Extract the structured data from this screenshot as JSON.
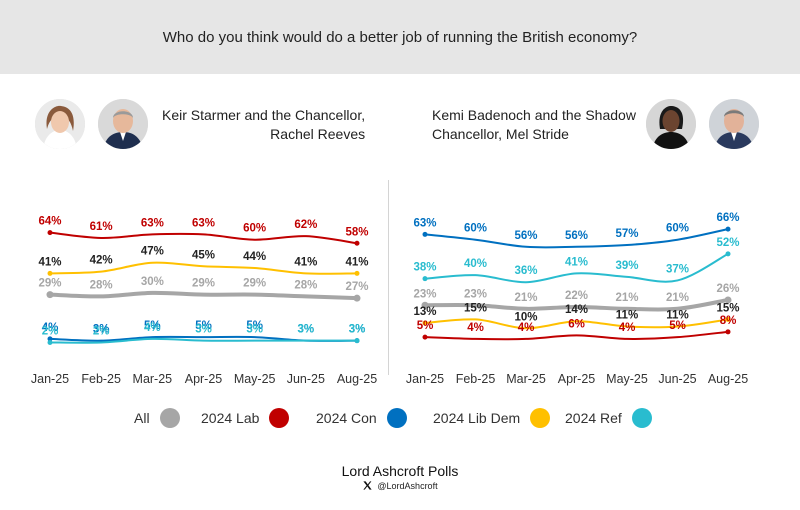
{
  "header": {
    "question": "Who do you think would do a better job of running the British economy?"
  },
  "panels": [
    {
      "title_line1": "Keir Starmer and the Chancellor,",
      "title_line2": "Rachel Reeves"
    },
    {
      "title_line1": "Kemi Badenoch and the Shadow",
      "title_line2": "Chancellor, Mel Stride"
    }
  ],
  "legend": [
    {
      "label": "All",
      "color": "#a6a6a6"
    },
    {
      "label": "2024 Lab",
      "color": "#c00000"
    },
    {
      "label": "2024 Con",
      "color": "#0070c0"
    },
    {
      "label": "2024 Lib Dem",
      "color": "#ffc000"
    },
    {
      "label": "2024 Ref",
      "color": "#29bccf"
    }
  ],
  "footer": {
    "title": "Lord Ashcroft Polls",
    "handle": "@LordAshcroft",
    "icon": "x-logo-icon"
  },
  "chart_data": [
    {
      "type": "line",
      "title": "Keir Starmer and the Chancellor, Rachel Reeves",
      "categories": [
        "Jan-25",
        "Feb-25",
        "Mar-25",
        "Apr-25",
        "May-25",
        "Jun-25",
        "Aug-25"
      ],
      "ylim": [
        0,
        70
      ],
      "grid": false,
      "legend_position": "bottom",
      "series": [
        {
          "name": "2024 Lab",
          "color": "#c00000",
          "values": [
            64,
            61,
            63,
            63,
            60,
            62,
            58
          ]
        },
        {
          "name": "2024 Lib Dem",
          "color": "#ffc000",
          "label_color": "#222222",
          "values": [
            41,
            42,
            47,
            45,
            44,
            41,
            41
          ]
        },
        {
          "name": "All",
          "color": "#a6a6a6",
          "values": [
            29,
            28,
            30,
            29,
            29,
            28,
            27
          ]
        },
        {
          "name": "2024 Con",
          "color": "#0070c0",
          "values": [
            4,
            3,
            5,
            5,
            5,
            3,
            3
          ]
        },
        {
          "name": "2024 Ref",
          "color": "#29bccf",
          "values": [
            2,
            2,
            4,
            3,
            3,
            3,
            3
          ]
        }
      ]
    },
    {
      "type": "line",
      "title": "Kemi Badenoch and the Shadow Chancellor, Mel Stride",
      "categories": [
        "Jan-25",
        "Feb-25",
        "Mar-25",
        "Apr-25",
        "May-25",
        "Jun-25",
        "Aug-25"
      ],
      "ylim": [
        0,
        70
      ],
      "grid": false,
      "legend_position": "bottom",
      "series": [
        {
          "name": "2024 Con",
          "color": "#0070c0",
          "values": [
            63,
            60,
            56,
            56,
            57,
            60,
            66
          ]
        },
        {
          "name": "2024 Ref",
          "color": "#29bccf",
          "values": [
            38,
            40,
            36,
            41,
            39,
            37,
            52
          ]
        },
        {
          "name": "All",
          "color": "#a6a6a6",
          "values": [
            23,
            23,
            21,
            22,
            21,
            21,
            26
          ]
        },
        {
          "name": "2024 Lib Dem",
          "color": "#ffc000",
          "label_color": "#222222",
          "values": [
            13,
            15,
            10,
            14,
            11,
            11,
            15
          ]
        },
        {
          "name": "2024 Lab",
          "color": "#c00000",
          "values": [
            5,
            4,
            4,
            6,
            4,
            5,
            8
          ]
        }
      ]
    }
  ]
}
